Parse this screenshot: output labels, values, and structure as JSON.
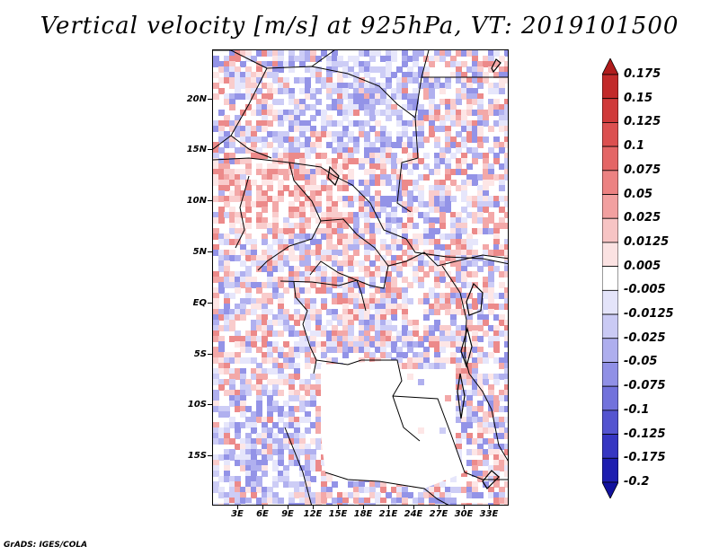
{
  "title": "Vertical velocity [m/s] at 925hPa, VT: 2019101500",
  "footer": "GrADS: IGES/COLA",
  "lat_labels": [
    "20N",
    "15N",
    "10N",
    "5N",
    "EQ",
    "5S",
    "10S",
    "15S"
  ],
  "lon_labels": [
    "3E",
    "6E",
    "9E",
    "12E",
    "15E",
    "18E",
    "21E",
    "24E",
    "27E",
    "30E",
    "33E"
  ],
  "colorbar": {
    "labels": [
      "0.175",
      "0.15",
      "0.125",
      "0.1",
      "0.075",
      "0.05",
      "0.025",
      "0.0125",
      "0.005",
      "-0.005",
      "-0.0125",
      "-0.025",
      "-0.05",
      "-0.075",
      "-0.1",
      "-0.125",
      "-0.175",
      "-0.2"
    ],
    "colors": [
      "#b01c1c",
      "#c22a2a",
      "#d03a3a",
      "#dc5050",
      "#e46666",
      "#ec8282",
      "#f2a0a0",
      "#f7c4c4",
      "#fbe2e2",
      "#ffffff",
      "#e4e4fa",
      "#cacaf4",
      "#aeaeee",
      "#9090e6",
      "#7272dc",
      "#5454d0",
      "#3636c2",
      "#1e1eb0",
      "#12129e"
    ]
  }
}
